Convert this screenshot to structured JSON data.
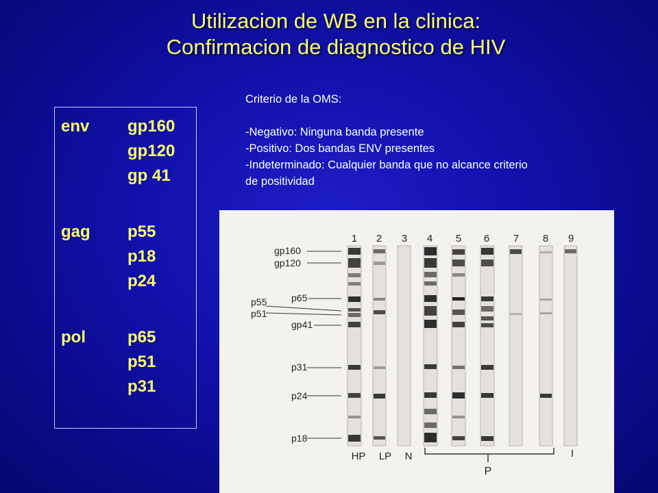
{
  "title": {
    "line1": "Utilizacion de WB en la clinica:",
    "line2": "Confirmacion de diagnostico de HIV"
  },
  "proteins": [
    {
      "gene": "env",
      "proteins": [
        "gp160",
        "gp120",
        "gp 41"
      ]
    },
    {
      "gene": "gag",
      "proteins": [
        "p55",
        "p18",
        "p24"
      ]
    },
    {
      "gene": "pol",
      "proteins": [
        "p65",
        "p51",
        "p31"
      ]
    }
  ],
  "criteria": {
    "heading": "Criterio de la OMS:",
    "items": [
      "-Negativo: Ninguna banda presente",
      "-Positivo: Dos bandas ENV presentes",
      "-Indeterminado: Cualquier banda que no alcance criterio",
      "de positividad"
    ]
  },
  "blot": {
    "lane_numbers": [
      "1",
      "2",
      "3",
      "4",
      "5",
      "6",
      "7",
      "8",
      "9"
    ],
    "band_labels": [
      "gp160",
      "gp120",
      "p65",
      "p55",
      "p51",
      "gp41",
      "p31",
      "p24",
      "p18"
    ],
    "bottom_labels": [
      "HP",
      "LP",
      "N",
      "P",
      "I"
    ]
  }
}
